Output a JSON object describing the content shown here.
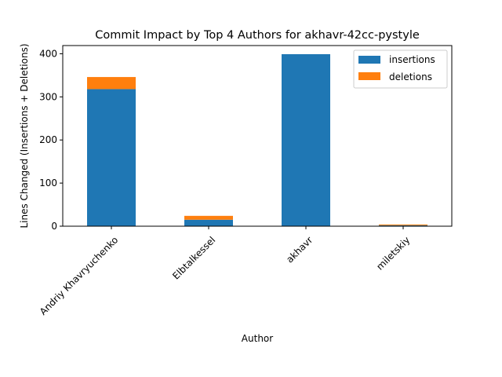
{
  "chart_data": {
    "type": "bar",
    "stacked": true,
    "title": "Commit Impact by Top 4 Authors for akhavr-42cc-pystyle",
    "xlabel": "Author",
    "ylabel": "Lines Changed (Insertions + Deletions)",
    "categories": [
      "Andriy Khavryuchenko",
      "Elbtalkessel",
      "akhavr",
      "miletskiy"
    ],
    "series": [
      {
        "name": "insertions",
        "values": [
          318,
          15,
          399,
          2
        ],
        "color": "#1f77b4"
      },
      {
        "name": "deletions",
        "values": [
          28,
          9,
          0,
          2
        ],
        "color": "#ff7f0e"
      }
    ],
    "ylim": [
      0,
      419
    ],
    "yticks": [
      0,
      100,
      200,
      300,
      400
    ],
    "legend_position": "top-right",
    "grid": false
  }
}
